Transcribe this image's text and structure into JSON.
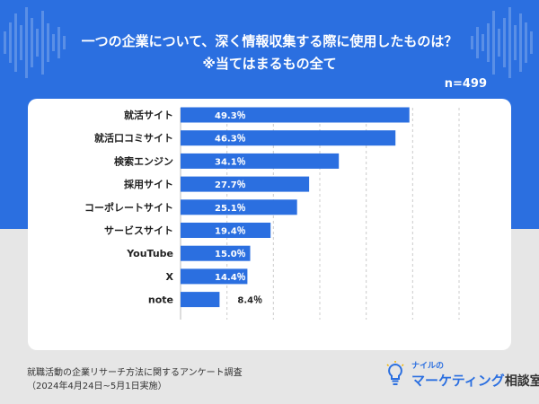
{
  "header": {
    "title_line1": "一つの企業について、深く情報収集する際に使用したものは？",
    "title_line2": "※当てはまるもの全て",
    "sample_size": "n=499"
  },
  "chart_data": {
    "type": "bar",
    "orientation": "horizontal",
    "categories": [
      "就活サイト",
      "就活口コミサイト",
      "検索エンジン",
      "採用サイト",
      "コーポレートサイト",
      "サービスサイト",
      "YouTube",
      "X",
      "note"
    ],
    "values": [
      49.3,
      46.3,
      34.1,
      27.7,
      25.1,
      19.4,
      15.0,
      14.4,
      8.4
    ],
    "value_labels": [
      "49.3％",
      "46.3％",
      "34.1％",
      "27.7％",
      "25.1％",
      "19.4％",
      "15.0％",
      "14.4％",
      "8.4％"
    ],
    "xlim": [
      0,
      60
    ],
    "grid": true,
    "bar_color": "#2b6fe0",
    "title": "一つの企業について、深く情報収集する際に使用したものは？",
    "xlabel": "",
    "ylabel": ""
  },
  "footer": {
    "source_line1": "就職活動の企業リサーチ方法に関するアンケート調査",
    "source_line2": "（2024年4月24日~5月1日実施）"
  },
  "logo": {
    "sub": "ナイルの",
    "main": "マーケティング",
    "suffix": "相談室",
    "icon": "lightbulb-icon"
  },
  "colors": {
    "accent": "#2b6fe0",
    "background_top": "#2b6fe0",
    "background_bottom": "#e6e6e6",
    "card": "#ffffff"
  }
}
